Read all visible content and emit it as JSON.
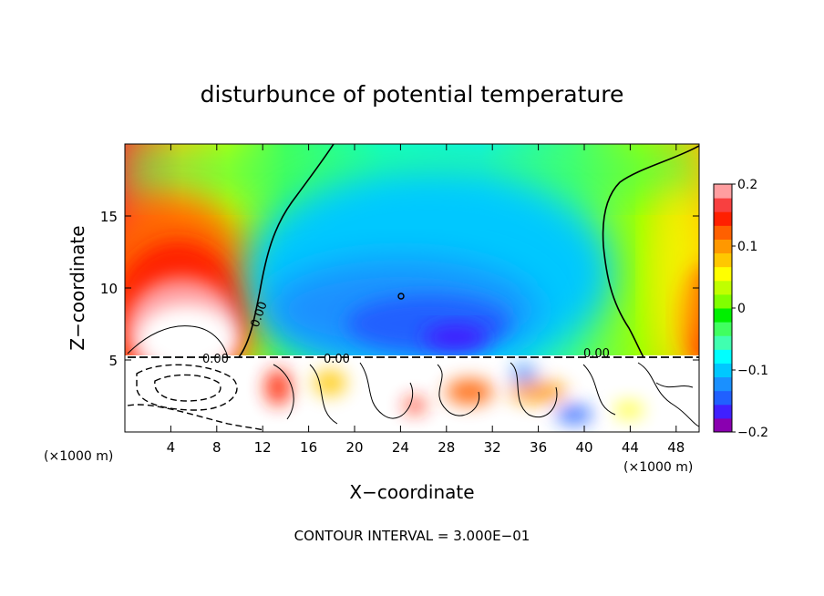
{
  "chart_data": {
    "type": "heatmap",
    "title": "disturbunce of potential temperature",
    "xlabel": "X−coordinate",
    "ylabel": "Z−coordinate",
    "x_unit_left": "(×1000 m)",
    "x_unit_right": "(×1000 m)",
    "footer": "CONTOUR INTERVAL = 3.000E−01",
    "xlim": [
      0,
      50
    ],
    "ylim": [
      0,
      20
    ],
    "x_ticks": [
      4,
      8,
      12,
      16,
      20,
      24,
      28,
      32,
      36,
      40,
      44,
      48
    ],
    "y_ticks": [
      5,
      10,
      15
    ],
    "contour_label": "0.00",
    "colorbar": {
      "range": [
        -0.2,
        0.2
      ],
      "tick_values": [
        0.2,
        0.1,
        0,
        -0.1,
        -0.2
      ],
      "tick_labels": [
        "0.2",
        "0.1",
        "0",
        "−0.1",
        "−0.2"
      ],
      "colors": [
        "#8a00b0",
        "#4020ff",
        "#2060ff",
        "#1a90ff",
        "#00c8ff",
        "#00ffff",
        "#40ffb0",
        "#40ff60",
        "#00f000",
        "#80ff00",
        "#c0ff00",
        "#ffff00",
        "#ffc800",
        "#ff9800",
        "#ff6000",
        "#ff2000",
        "#f84040",
        "#ff9ea0"
      ]
    }
  }
}
